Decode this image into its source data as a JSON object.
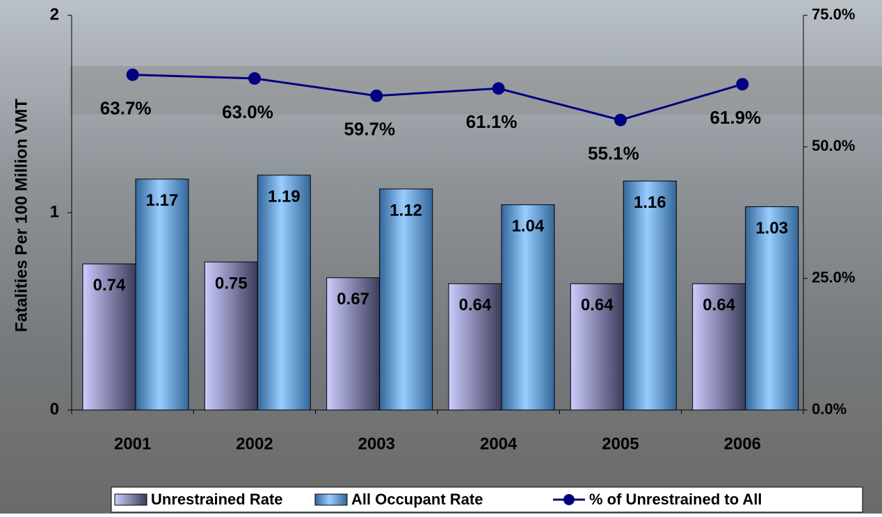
{
  "chart_data": {
    "type": "bar",
    "y_label": "Fatalities Per 100 Million VMT",
    "categories": [
      "2001",
      "2002",
      "2003",
      "2004",
      "2005",
      "2006"
    ],
    "series": [
      {
        "name": "Unrestrained Rate",
        "color": "#ccccff",
        "values": [
          0.74,
          0.75,
          0.67,
          0.64,
          0.64,
          0.64
        ]
      },
      {
        "name": "All Occupant Rate",
        "color": "#99ccff",
        "values": [
          1.17,
          1.19,
          1.12,
          1.04,
          1.16,
          1.03
        ]
      },
      {
        "name": "% of Unrestrained to All",
        "color": "#000080",
        "type": "line",
        "axis": "y2",
        "values": [
          63.7,
          63.0,
          59.7,
          61.1,
          55.1,
          61.9
        ],
        "value_labels": [
          "63.7%",
          "63.0%",
          "59.7%",
          "61.1%",
          "55.1%",
          "61.9%"
        ]
      }
    ],
    "ylim": [
      0,
      2
    ],
    "yticks": [
      0,
      1,
      2
    ],
    "y2lim": [
      0,
      75
    ],
    "y2ticks": [
      {
        "value": 0,
        "label": "0.0%"
      },
      {
        "value": 25,
        "label": "25.0%"
      },
      {
        "value": 50,
        "label": "50.0%"
      },
      {
        "value": 75,
        "label": "75.0%"
      }
    ],
    "legend": "bottom"
  }
}
